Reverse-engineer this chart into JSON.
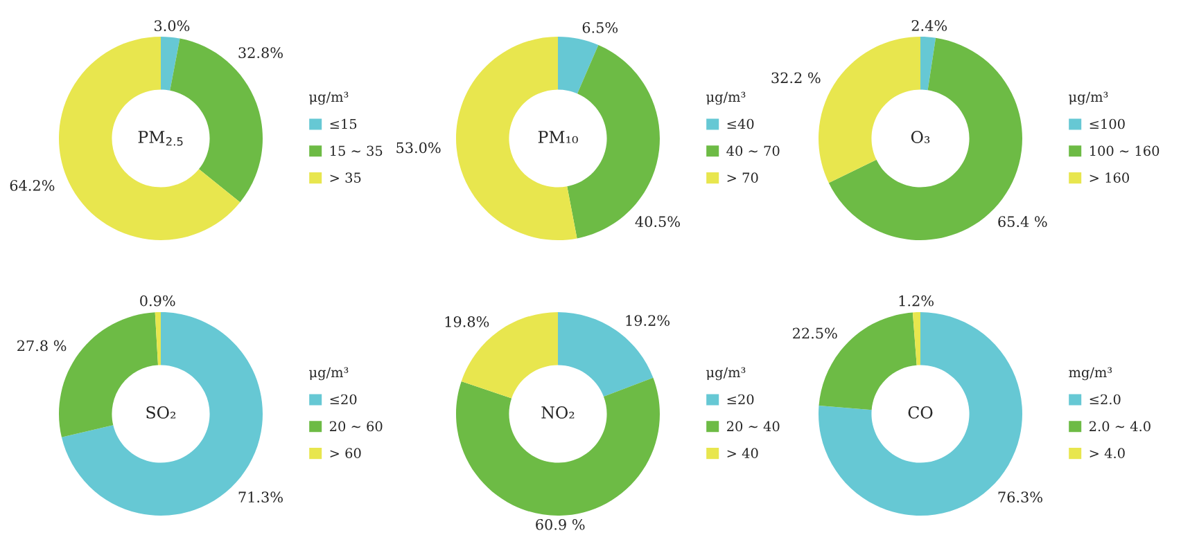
{
  "chart_data": [
    {
      "type": "donut",
      "title": "PM$_{2.5}$",
      "legend_title": "μg/m³",
      "legend": "right",
      "categories": [
        "≤15",
        "15 ∼ 35",
        "> 35"
      ],
      "values": [
        3.0,
        32.8,
        64.2
      ],
      "value_labels": [
        "3.0%",
        "32.8%",
        "64.2%"
      ],
      "colors": [
        "#66c8d4",
        "#6dbb45",
        "#e8e64e"
      ]
    },
    {
      "type": "donut",
      "title": "PM₁₀",
      "legend_title": "μg/m³",
      "legend": "right",
      "categories": [
        "≤40",
        "40 ∼ 70",
        "> 70"
      ],
      "values": [
        6.5,
        40.5,
        53.0
      ],
      "value_labels": [
        "6.5%",
        "40.5%",
        "53.0%"
      ],
      "colors": [
        "#66c8d4",
        "#6dbb45",
        "#e8e64e"
      ]
    },
    {
      "type": "donut",
      "title": "O₃",
      "legend_title": "μg/m³",
      "legend": "right",
      "categories": [
        "≤100",
        "100 ∼ 160",
        "> 160"
      ],
      "values": [
        2.4,
        65.4,
        32.2
      ],
      "value_labels": [
        "2.4%",
        "65.4 %",
        "32.2 %"
      ],
      "colors": [
        "#66c8d4",
        "#6dbb45",
        "#e8e64e"
      ]
    },
    {
      "type": "donut",
      "title": "SO₂",
      "legend_title": "μg/m³",
      "legend": "right",
      "categories": [
        "≤20",
        "20 ∼ 60",
        "> 60"
      ],
      "values": [
        71.3,
        27.8,
        0.9
      ],
      "value_labels": [
        "71.3%",
        "27.8 %",
        "0.9%"
      ],
      "colors": [
        "#66c8d4",
        "#6dbb45",
        "#e8e64e"
      ]
    },
    {
      "type": "donut",
      "title": "NO₂",
      "legend_title": "μg/m³",
      "legend": "right",
      "categories": [
        "≤20",
        "20 ∼ 40",
        "> 40"
      ],
      "values": [
        19.2,
        60.9,
        19.8
      ],
      "value_labels": [
        "19.2%",
        "60.9 %",
        "19.8%"
      ],
      "colors": [
        "#66c8d4",
        "#6dbb45",
        "#e8e64e"
      ]
    },
    {
      "type": "donut",
      "title": "CO",
      "legend_title": "mg/m³",
      "legend": "right",
      "categories": [
        "≤2.0",
        "2.0 ∼ 4.0",
        "> 4.0"
      ],
      "values": [
        76.3,
        22.5,
        1.2
      ],
      "value_labels": [
        "76.3%",
        "22.5%",
        "1.2%"
      ],
      "colors": [
        "#66c8d4",
        "#6dbb45",
        "#e8e64e"
      ]
    }
  ]
}
